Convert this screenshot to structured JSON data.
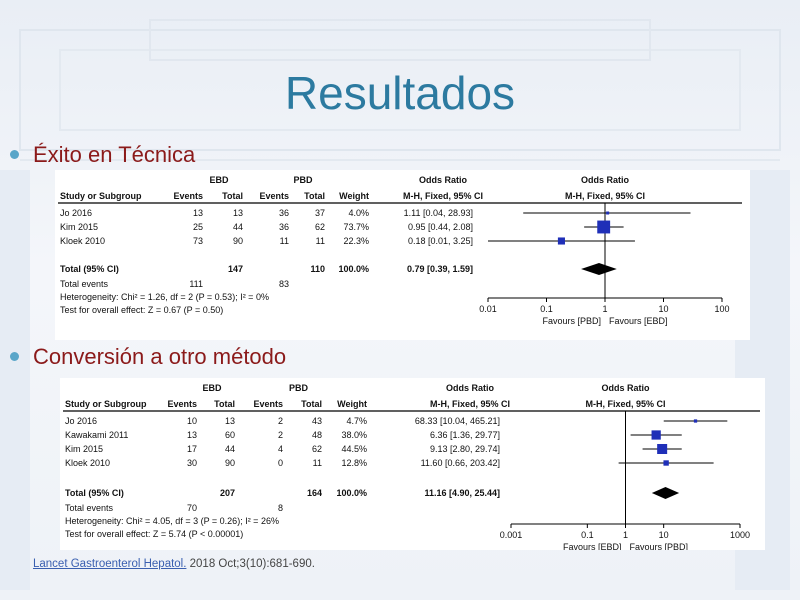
{
  "slide": {
    "title": "Resultados",
    "bullet1": "Éxito en Técnica",
    "bullet2": "Conversión a otro método",
    "citation_link": "Lancet Gastroenterol Hepatol.",
    "citation_rest": " 2018 Oct;3(10):681-690."
  },
  "colors": {
    "title": "#2c7aa0",
    "bullet_text": "#8b1a1a",
    "bullet_dot": "#5aa6c9",
    "marker": "#1f2fb8",
    "diamond": "#000000"
  },
  "chart_data": [
    {
      "type": "table",
      "group1": "EBD",
      "group2": "PBD",
      "col_headers": [
        "Study or Subgroup",
        "Events",
        "Total",
        "Events",
        "Total",
        "Weight",
        "Odds Ratio"
      ],
      "or_header": "Odds Ratio",
      "or_subheader": "M-H, Fixed, 95% CI",
      "studies": [
        {
          "name": "Jo 2016",
          "e1": "13",
          "t1": "13",
          "e2": "36",
          "t2": "37",
          "weight": "4.0%",
          "ci_text": "1.11 [0.04, 28.93]",
          "or": 1.11,
          "lo": 0.04,
          "hi": 28.93
        },
        {
          "name": "Kim 2015",
          "e1": "25",
          "t1": "44",
          "e2": "36",
          "t2": "62",
          "weight": "73.7%",
          "ci_text": "0.95 [0.44, 2.08]",
          "or": 0.95,
          "lo": 0.44,
          "hi": 2.08
        },
        {
          "name": "Kloek 2010",
          "e1": "73",
          "t1": "90",
          "e2": "11",
          "t2": "11",
          "weight": "22.3%",
          "ci_text": "0.18 [0.01, 3.25]",
          "or": 0.18,
          "lo": 0.01,
          "hi": 3.25
        }
      ],
      "total": {
        "name": "Total (95% CI)",
        "t1": "147",
        "t2": "110",
        "weight": "100.0%",
        "ci_text": "0.79 [0.39, 1.59]",
        "or": 0.79,
        "lo": 0.39,
        "hi": 1.59
      },
      "total_events": {
        "label": "Total events",
        "e1": "111",
        "e2": "83"
      },
      "heterogeneity": "Heterogeneity: Chi² = 1.26, df = 2 (P = 0.53); I² = 0%",
      "overall_effect": "Test for overall effect: Z = 0.67 (P = 0.50)",
      "axis_ticks": [
        0.01,
        0.1,
        1,
        10,
        100
      ],
      "axis_tick_labels": [
        "0.01",
        "0.1",
        "1",
        "10",
        "100"
      ],
      "xlim": [
        0.01,
        100
      ],
      "x_scale": "log",
      "favours_left": "Favours [PBD]",
      "favours_right": "Favours [EBD]"
    },
    {
      "type": "table",
      "group1": "EBD",
      "group2": "PBD",
      "col_headers": [
        "Study or Subgroup",
        "Events",
        "Total",
        "Events",
        "Total",
        "Weight",
        "Odds Ratio"
      ],
      "or_header": "Odds Ratio",
      "or_subheader": "M-H, Fixed, 95% CI",
      "studies": [
        {
          "name": "Jo 2016",
          "e1": "10",
          "t1": "13",
          "e2": "2",
          "t2": "43",
          "weight": "4.7%",
          "ci_text": "68.33 [10.04, 465.21]",
          "or": 68.33,
          "lo": 10.04,
          "hi": 465.21
        },
        {
          "name": "Kawakami 2011",
          "e1": "13",
          "t1": "60",
          "e2": "2",
          "t2": "48",
          "weight": "38.0%",
          "ci_text": "6.36 [1.36, 29.77]",
          "or": 6.36,
          "lo": 1.36,
          "hi": 29.77
        },
        {
          "name": "Kim 2015",
          "e1": "17",
          "t1": "44",
          "e2": "4",
          "t2": "62",
          "weight": "44.5%",
          "ci_text": "9.13 [2.80, 29.74]",
          "or": 9.13,
          "lo": 2.8,
          "hi": 29.74
        },
        {
          "name": "Kloek 2010",
          "e1": "30",
          "t1": "90",
          "e2": "0",
          "t2": "11",
          "weight": "12.8%",
          "ci_text": "11.60 [0.66, 203.42]",
          "or": 11.6,
          "lo": 0.66,
          "hi": 203.42
        }
      ],
      "total": {
        "name": "Total (95% CI)",
        "t1": "207",
        "t2": "164",
        "weight": "100.0%",
        "ci_text": "11.16 [4.90, 25.44]",
        "or": 11.16,
        "lo": 4.9,
        "hi": 25.44
      },
      "total_events": {
        "label": "Total events",
        "e1": "70",
        "e2": "8"
      },
      "heterogeneity": "Heterogeneity: Chi² = 4.05, df = 3 (P = 0.26); I² = 26%",
      "overall_effect": "Test for overall effect: Z = 5.74 (P < 0.00001)",
      "axis_ticks": [
        0.001,
        0.1,
        1,
        10,
        1000
      ],
      "axis_tick_labels": [
        "0.001",
        "0.1",
        "1",
        "10",
        "1000"
      ],
      "xlim": [
        0.001,
        1000
      ],
      "x_scale": "log",
      "favours_left": "Favours [EBD]",
      "favours_right": "Favours [PBD]"
    }
  ]
}
